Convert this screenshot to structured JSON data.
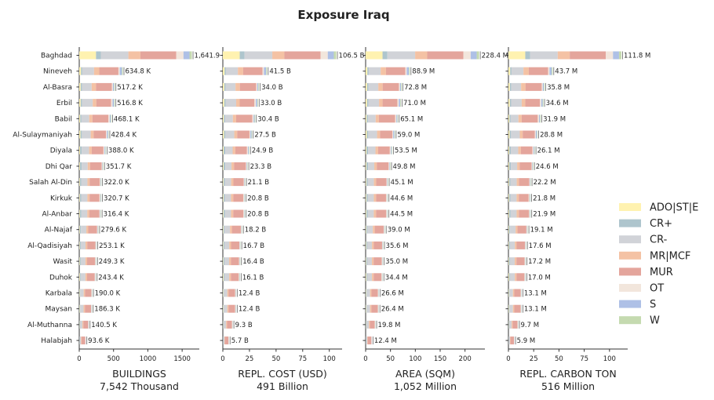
{
  "chart_data": {
    "type": "bar",
    "title": "Exposure Iraq",
    "orientation": "horizontal",
    "stacked": true,
    "legend_position": "right",
    "categories": [
      "Baghdad",
      "Nineveh",
      "Al-Basra",
      "Erbil",
      "Babil",
      "Al-Sulaymaniyah",
      "Diyala",
      "Dhi Qar",
      "Salah Al-Din",
      "Kirkuk",
      "Al-Anbar",
      "Al-Najaf",
      "Al-Qadisiyah",
      "Wasit",
      "Duhok",
      "Karbala",
      "Maysan",
      "Al-Muthanna",
      "Halabjah"
    ],
    "legend": [
      {
        "name": "ADO|ST|E",
        "color": "#fff2b0"
      },
      {
        "name": "CR+",
        "color": "#aec5cd"
      },
      {
        "name": "CR-",
        "color": "#d1d3d8"
      },
      {
        "name": "MR|MCF",
        "color": "#f4c2a4"
      },
      {
        "name": "MUR",
        "color": "#e4a59c"
      },
      {
        "name": "OT",
        "color": "#f2e6dc"
      },
      {
        "name": "S",
        "color": "#aec0e6"
      },
      {
        "name": "W",
        "color": "#c5dab0"
      }
    ],
    "panels": [
      {
        "xlabel": "BUILDINGS",
        "total": "7,542 Thousand",
        "xlim": [
          0,
          1750
        ],
        "xticks": [
          0,
          500,
          1000,
          1500
        ],
        "values": [
          1641.9,
          634.8,
          517.2,
          516.8,
          468.1,
          428.4,
          388.0,
          351.7,
          322.0,
          320.7,
          316.4,
          279.6,
          253.1,
          249.3,
          243.4,
          190.0,
          186.3,
          140.5,
          93.6
        ],
        "labels": [
          "1,641.9 K",
          "634.8 K",
          "517.2 K",
          "516.8 K",
          "468.1 K",
          "428.4 K",
          "388.0 K",
          "351.7 K",
          "322.0 K",
          "320.7 K",
          "316.4 K",
          "279.6 K",
          "253.1 K",
          "249.3 K",
          "243.4 K",
          "190.0 K",
          "186.3 K",
          "140.5 K",
          "93.6 K"
        ]
      },
      {
        "xlabel": "REPL. COST (USD)",
        "total": "491 Billion",
        "xlim": [
          0,
          112
        ],
        "xticks": [
          0,
          25,
          50,
          75,
          100
        ],
        "values": [
          106.5,
          41.5,
          34.0,
          33.0,
          30.4,
          27.5,
          24.9,
          23.3,
          21.1,
          20.8,
          20.8,
          18.2,
          16.7,
          16.4,
          16.1,
          12.4,
          12.4,
          9.3,
          5.7
        ],
        "labels": [
          "106.5 B",
          "41.5 B",
          "34.0 B",
          "33.0 B",
          "30.4 B",
          "27.5 B",
          "24.9 B",
          "23.3 B",
          "21.1 B",
          "20.8 B",
          "20.8 B",
          "18.2 B",
          "16.7 B",
          "16.4 B",
          "16.1 B",
          "12.4 B",
          "12.4 B",
          "9.3 B",
          "5.7 B"
        ]
      },
      {
        "xlabel": "AREA (SQM)",
        "total": "1,052 Million",
        "xlim": [
          0,
          240
        ],
        "xticks": [
          0,
          50,
          100,
          150,
          200
        ],
        "values": [
          228.4,
          88.9,
          72.8,
          71.0,
          65.1,
          59.0,
          53.5,
          49.8,
          45.1,
          44.6,
          44.5,
          39.0,
          35.6,
          35.0,
          34.4,
          26.6,
          26.4,
          19.8,
          12.4
        ],
        "labels": [
          "228.4 M",
          "88.9 M",
          "72.8 M",
          "71.0 M",
          "65.1 M",
          "59.0 M",
          "53.5 M",
          "49.8 M",
          "45.1 M",
          "44.6 M",
          "44.5 M",
          "39.0 M",
          "35.6 M",
          "35.0 M",
          "34.4 M",
          "26.6 M",
          "26.4 M",
          "19.8 M",
          "12.4 M"
        ]
      },
      {
        "xlabel": "REPL. CARBON TON",
        "total": "516 Million",
        "xlim": [
          0,
          118
        ],
        "xticks": [
          0,
          25,
          50,
          75,
          100
        ],
        "values": [
          111.8,
          43.7,
          35.8,
          34.6,
          31.9,
          28.8,
          26.1,
          24.6,
          22.2,
          21.8,
          21.9,
          19.1,
          17.6,
          17.2,
          17.0,
          13.1,
          13.1,
          9.7,
          5.9
        ],
        "labels": [
          "111.8 M",
          "43.7 M",
          "35.8 M",
          "34.6 M",
          "31.9 M",
          "28.8 M",
          "26.1 M",
          "24.6 M",
          "22.2 M",
          "21.8 M",
          "21.9 M",
          "19.1 M",
          "17.6 M",
          "17.2 M",
          "17.0 M",
          "13.1 M",
          "13.1 M",
          "9.7 M",
          "5.9 M"
        ]
      }
    ],
    "composition_by_region": [
      [
        0.14,
        0.04,
        0.23,
        0.1,
        0.3,
        0.06,
        0.05,
        0.02
      ],
      [
        0.04,
        0.03,
        0.27,
        0.12,
        0.44,
        0.03,
        0.05,
        0.02
      ],
      [
        0.04,
        0.04,
        0.27,
        0.12,
        0.45,
        0.03,
        0.03,
        0.02
      ],
      [
        0.04,
        0.04,
        0.3,
        0.1,
        0.42,
        0.04,
        0.04,
        0.02
      ],
      [
        0.03,
        0.04,
        0.24,
        0.1,
        0.5,
        0.04,
        0.03,
        0.02
      ],
      [
        0.04,
        0.05,
        0.3,
        0.1,
        0.42,
        0.03,
        0.04,
        0.02
      ],
      [
        0.03,
        0.06,
        0.28,
        0.1,
        0.44,
        0.04,
        0.03,
        0.02
      ],
      [
        0.03,
        0.07,
        0.25,
        0.1,
        0.48,
        0.03,
        0.02,
        0.02
      ],
      [
        0.03,
        0.06,
        0.28,
        0.1,
        0.46,
        0.03,
        0.02,
        0.02
      ],
      [
        0.03,
        0.06,
        0.28,
        0.1,
        0.45,
        0.04,
        0.02,
        0.02
      ],
      [
        0.03,
        0.07,
        0.27,
        0.1,
        0.46,
        0.03,
        0.02,
        0.02
      ],
      [
        0.03,
        0.06,
        0.28,
        0.1,
        0.46,
        0.03,
        0.02,
        0.02
      ],
      [
        0.03,
        0.06,
        0.27,
        0.1,
        0.47,
        0.03,
        0.02,
        0.02
      ],
      [
        0.03,
        0.06,
        0.27,
        0.1,
        0.47,
        0.03,
        0.02,
        0.02
      ],
      [
        0.04,
        0.05,
        0.28,
        0.1,
        0.46,
        0.03,
        0.02,
        0.02
      ],
      [
        0.03,
        0.05,
        0.26,
        0.1,
        0.49,
        0.03,
        0.02,
        0.02
      ],
      [
        0.03,
        0.05,
        0.26,
        0.1,
        0.49,
        0.03,
        0.02,
        0.02
      ],
      [
        0.03,
        0.05,
        0.25,
        0.1,
        0.5,
        0.03,
        0.02,
        0.02
      ],
      [
        0.02,
        0.04,
        0.2,
        0.08,
        0.6,
        0.03,
        0.02,
        0.01
      ]
    ]
  }
}
